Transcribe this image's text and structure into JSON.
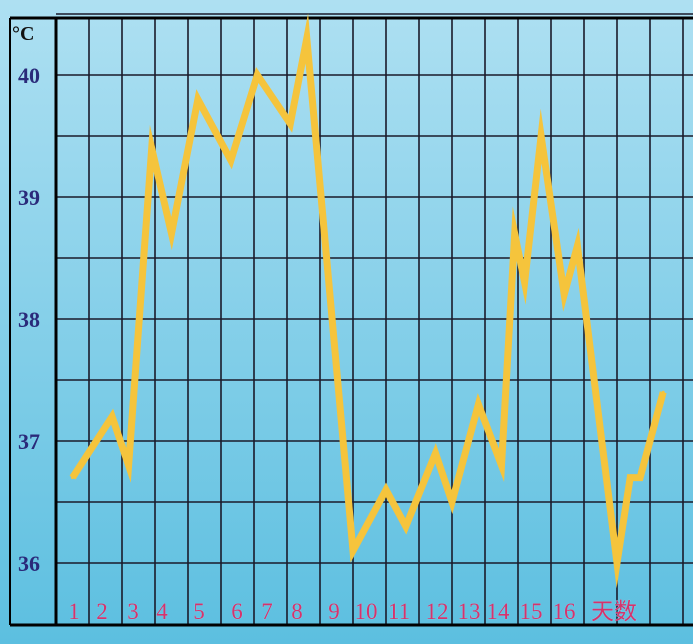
{
  "chart_data": {
    "type": "line",
    "y_unit_label": "°C",
    "x_axis_label": "天数",
    "y_ticks": [
      "36",
      "37",
      "38",
      "39",
      "40"
    ],
    "x_ticks": [
      "1",
      "2",
      "3",
      "4",
      "5",
      "6",
      "7",
      "8",
      "9",
      "10",
      "11",
      "12",
      "13",
      "14",
      "15",
      "16"
    ],
    "ylim": [
      35.9,
      40.6
    ],
    "grid": true,
    "series": [
      {
        "color": "#f5c43c",
        "points": [
          {
            "x": 0.5,
            "y": 36.7
          },
          {
            "x": 1.7,
            "y": 37.2
          },
          {
            "x": 2.2,
            "y": 36.8
          },
          {
            "x": 2.9,
            "y": 39.4
          },
          {
            "x": 3.5,
            "y": 38.7
          },
          {
            "x": 4.3,
            "y": 39.8
          },
          {
            "x": 5.3,
            "y": 39.3
          },
          {
            "x": 6.1,
            "y": 40.0
          },
          {
            "x": 7.1,
            "y": 39.6
          },
          {
            "x": 7.6,
            "y": 40.3
          },
          {
            "x": 9.0,
            "y": 36.1
          },
          {
            "x": 10.0,
            "y": 36.6
          },
          {
            "x": 10.6,
            "y": 36.3
          },
          {
            "x": 11.5,
            "y": 36.9
          },
          {
            "x": 12.0,
            "y": 36.5
          },
          {
            "x": 12.8,
            "y": 37.3
          },
          {
            "x": 13.5,
            "y": 36.8
          },
          {
            "x": 13.9,
            "y": 38.7
          },
          {
            "x": 14.2,
            "y": 38.3
          },
          {
            "x": 14.7,
            "y": 39.5
          },
          {
            "x": 15.4,
            "y": 38.2
          },
          {
            "x": 15.8,
            "y": 38.6
          },
          {
            "x": 17.0,
            "y": 36.0
          },
          {
            "x": 17.4,
            "y": 36.7
          },
          {
            "x": 17.7,
            "y": 36.7
          },
          {
            "x": 18.4,
            "y": 37.4
          }
        ]
      }
    ]
  }
}
